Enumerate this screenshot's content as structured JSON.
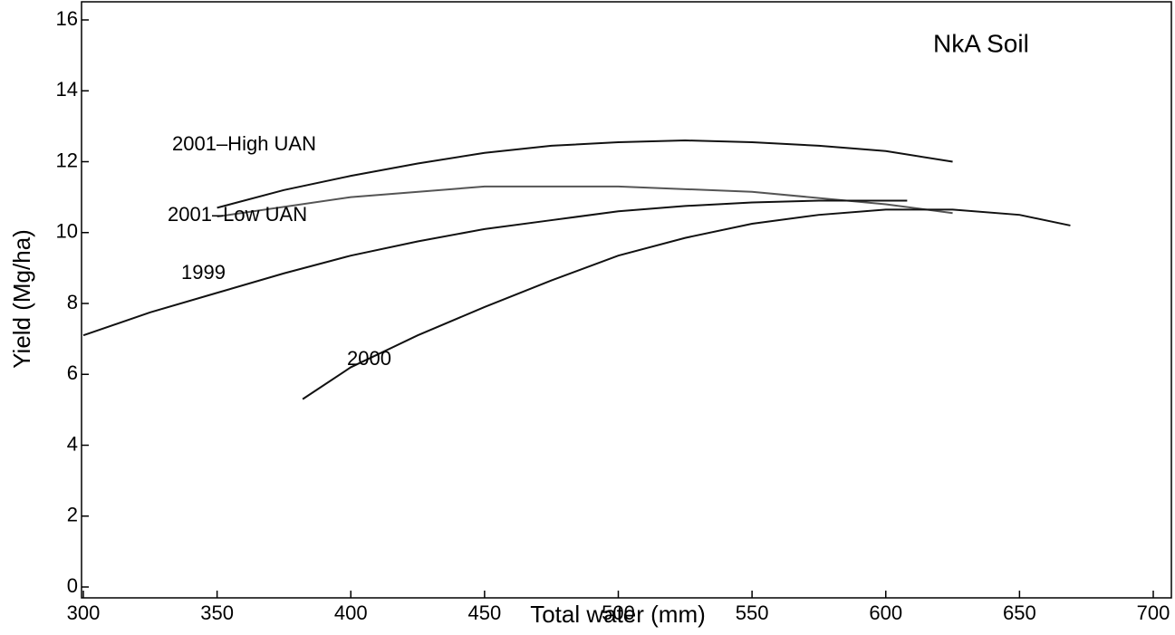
{
  "chart_data": {
    "type": "line",
    "annotation": "NkA Soil",
    "xlabel": "Total water (mm)",
    "ylabel": "Yield (Mg/ha)",
    "xlim": [
      300,
      700
    ],
    "ylim": [
      0,
      16
    ],
    "xticks": [
      300,
      350,
      400,
      450,
      500,
      550,
      600,
      650,
      700
    ],
    "yticks": [
      0,
      2,
      4,
      6,
      8,
      10,
      12,
      14,
      16
    ],
    "series": [
      {
        "name": "2001–High UAN",
        "color": "#111111",
        "x": [
          350,
          375,
          400,
          425,
          450,
          475,
          500,
          525,
          550,
          575,
          600,
          625
        ],
        "values": [
          10.7,
          11.2,
          11.6,
          11.95,
          12.25,
          12.45,
          12.55,
          12.6,
          12.55,
          12.45,
          12.3,
          12.0
        ]
      },
      {
        "name": "2001–Low UAN",
        "color": "#555555",
        "x": [
          350,
          400,
          450,
          500,
          550,
          600,
          625
        ],
        "values": [
          10.45,
          11.0,
          11.3,
          11.3,
          11.15,
          10.8,
          10.55
        ]
      },
      {
        "name": "1999",
        "color": "#111111",
        "x": [
          300,
          325,
          350,
          375,
          400,
          425,
          450,
          475,
          500,
          525,
          550,
          575,
          608
        ],
        "values": [
          7.1,
          7.75,
          8.3,
          8.85,
          9.35,
          9.75,
          10.1,
          10.35,
          10.6,
          10.75,
          10.85,
          10.9,
          10.9
        ]
      },
      {
        "name": "2000",
        "color": "#111111",
        "x": [
          382,
          400,
          425,
          450,
          475,
          500,
          525,
          550,
          575,
          600,
          625,
          650,
          669
        ],
        "values": [
          5.3,
          6.2,
          7.1,
          7.9,
          8.65,
          9.35,
          9.85,
          10.25,
          10.5,
          10.65,
          10.65,
          10.5,
          10.2
        ]
      }
    ]
  }
}
